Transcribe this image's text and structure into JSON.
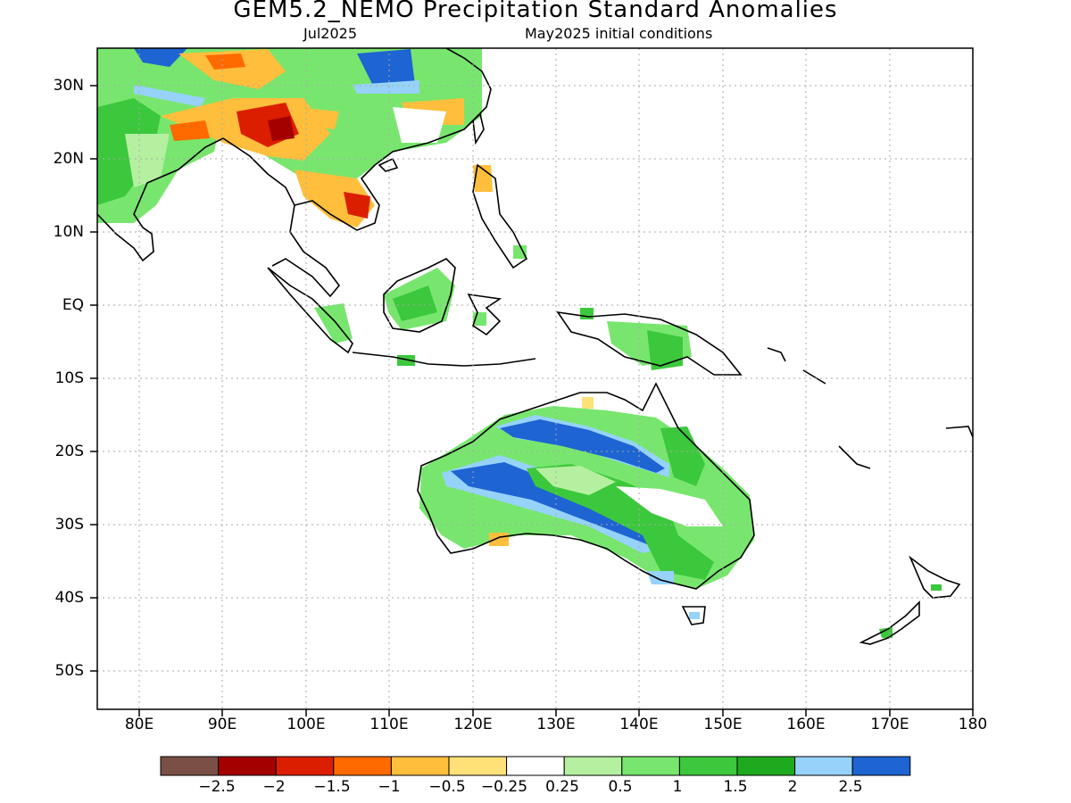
{
  "header": {
    "title": "GEM5.2_NEMO Precipitation Standard Anomalies",
    "month": "Jul2025",
    "init": "May2025 initial conditions"
  },
  "axes": {
    "lat_labels": [
      "30N",
      "20N",
      "10N",
      "EQ",
      "10S",
      "20S",
      "30S",
      "40S",
      "50S"
    ],
    "lon_labels": [
      "80E",
      "90E",
      "100E",
      "110E",
      "120E",
      "130E",
      "140E",
      "150E",
      "160E",
      "170E",
      "180"
    ],
    "lat_values": [
      30,
      20,
      10,
      0,
      -10,
      -20,
      -30,
      -40,
      -50
    ],
    "lon_values": [
      80,
      90,
      100,
      110,
      120,
      130,
      140,
      150,
      160,
      170,
      180
    ],
    "lon_range": [
      75,
      180
    ],
    "lat_range": [
      -55,
      35
    ],
    "grid": "dotted"
  },
  "colorbar": {
    "colors": [
      "#7a4f45",
      "#a50000",
      "#dc1e00",
      "#ff6a00",
      "#ffbe3c",
      "#ffe178",
      "#ffffff",
      "#b4f0a0",
      "#78e66e",
      "#3cc83c",
      "#1eaa1e",
      "#96d2fa",
      "#1e64d2"
    ],
    "labels": [
      "−2.5",
      "−2",
      "−1.5",
      "−1",
      "−0.5",
      "−0.25",
      "0.25",
      "0.5",
      "1",
      "1.5",
      "2",
      "2.5"
    ]
  }
}
